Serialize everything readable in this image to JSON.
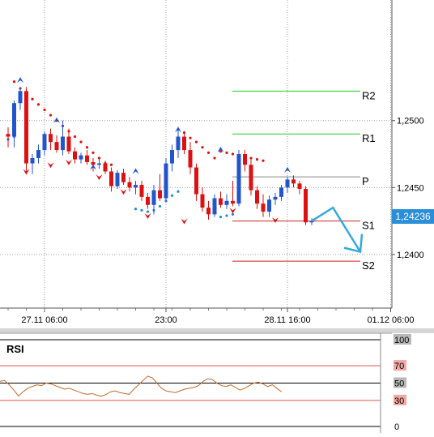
{
  "chart_data": [
    {
      "type": "candlestick",
      "price_axis": {
        "min": 1.236,
        "max": 1.259,
        "ticks": [
          "1,2500",
          "1,2450",
          "1,2400"
        ],
        "tick_values": [
          1.25,
          1.245,
          1.24
        ],
        "current_price_label": "1,24236",
        "current_price": 1.24236
      },
      "time_axis": {
        "labels": [
          "27.11 06:00",
          "23:00",
          "28.11 16:00",
          "01.12 06:00"
        ],
        "label_index": [
          6,
          26,
          46,
          63
        ]
      },
      "candles": [
        [
          1.249,
          1.2495,
          1.248,
          1.2488
        ],
        [
          1.2488,
          1.2515,
          1.248,
          1.2513
        ],
        [
          1.2513,
          1.2525,
          1.2508,
          1.2522
        ],
        [
          1.2522,
          1.2525,
          1.2462,
          1.2468
        ],
        [
          1.2468,
          1.2475,
          1.246,
          1.2472
        ],
        [
          1.2472,
          1.2482,
          1.2468,
          1.2478
        ],
        [
          1.2478,
          1.2492,
          1.2474,
          1.249
        ],
        [
          1.249,
          1.2494,
          1.2478,
          1.2484
        ],
        [
          1.2484,
          1.2489,
          1.2476,
          1.2478
        ],
        [
          1.2478,
          1.25,
          1.2474,
          1.2488
        ],
        [
          1.2488,
          1.2494,
          1.2475,
          1.2477
        ],
        [
          1.2477,
          1.248,
          1.2468,
          1.2471
        ],
        [
          1.2471,
          1.2476,
          1.2468,
          1.2474
        ],
        [
          1.2474,
          1.2478,
          1.2467,
          1.2469
        ],
        [
          1.2469,
          1.2472,
          1.2462,
          1.2467
        ],
        [
          1.2467,
          1.2471,
          1.2464,
          1.2468
        ],
        [
          1.2468,
          1.247,
          1.246,
          1.2462
        ],
        [
          1.2462,
          1.2465,
          1.2447,
          1.2451
        ],
        [
          1.2451,
          1.2463,
          1.2449,
          1.2461
        ],
        [
          1.2461,
          1.2464,
          1.2452,
          1.2454
        ],
        [
          1.2454,
          1.2458,
          1.2447,
          1.245
        ],
        [
          1.245,
          1.2455,
          1.2445,
          1.2452
        ],
        [
          1.2452,
          1.2455,
          1.244,
          1.2443
        ],
        [
          1.2443,
          1.2446,
          1.2434,
          1.2437
        ],
        [
          1.2437,
          1.2452,
          1.243,
          1.2448
        ],
        [
          1.2448,
          1.246,
          1.244,
          1.2442
        ],
        [
          1.2442,
          1.2472,
          1.244,
          1.2468
        ],
        [
          1.2468,
          1.2482,
          1.2462,
          1.2478
        ],
        [
          1.2478,
          1.2493,
          1.2472,
          1.2488
        ],
        [
          1.2488,
          1.2492,
          1.2475,
          1.2478
        ],
        [
          1.2478,
          1.2484,
          1.246,
          1.2465
        ],
        [
          1.2465,
          1.2468,
          1.244,
          1.2445
        ],
        [
          1.2445,
          1.245,
          1.2432,
          1.2435
        ],
        [
          1.2435,
          1.244,
          1.2426,
          1.243
        ],
        [
          1.243,
          1.2445,
          1.2428,
          1.2442
        ],
        [
          1.2442,
          1.2447,
          1.2435,
          1.2437
        ],
        [
          1.2437,
          1.2445,
          1.2434,
          1.244
        ],
        [
          1.244,
          1.2455,
          1.2436,
          1.2438
        ],
        [
          1.2438,
          1.2478,
          1.2436,
          1.2475
        ],
        [
          1.2475,
          1.2478,
          1.2462,
          1.2467
        ],
        [
          1.2467,
          1.2471,
          1.2444,
          1.2448
        ],
        [
          1.2448,
          1.2451,
          1.2434,
          1.2438
        ],
        [
          1.2438,
          1.2445,
          1.2428,
          1.2432
        ],
        [
          1.2432,
          1.2444,
          1.2428,
          1.2441
        ],
        [
          1.2441,
          1.2446,
          1.2437,
          1.2443
        ],
        [
          1.2443,
          1.2452,
          1.244,
          1.245
        ],
        [
          1.245,
          1.2458,
          1.2446,
          1.2456
        ],
        [
          1.2456,
          1.2459,
          1.245,
          1.2453
        ],
        [
          1.2453,
          1.2455,
          1.2445,
          1.2449
        ],
        [
          1.2449,
          1.2451,
          1.2422,
          1.2424
        ],
        [
          1.2424,
          1.2427,
          1.2422,
          1.2425
        ]
      ],
      "trailing_stop_upper": [
        [
          1,
          1.2529
        ],
        [
          2,
          1.2524
        ],
        [
          3,
          1.252
        ],
        [
          4,
          1.2516
        ],
        [
          5,
          1.2512
        ],
        [
          6,
          1.2508
        ],
        [
          7,
          1.2504
        ],
        [
          8,
          1.25
        ],
        [
          9,
          1.2496
        ],
        [
          10,
          1.2492
        ],
        [
          11,
          1.2488
        ],
        [
          12,
          1.2484
        ],
        [
          13,
          1.248
        ],
        [
          14,
          1.2476
        ],
        [
          15,
          1.2472
        ],
        [
          16,
          1.2468
        ],
        [
          17,
          1.2467
        ],
        [
          29,
          1.2491
        ],
        [
          30,
          1.2487
        ],
        [
          31,
          1.2484
        ],
        [
          32,
          1.248
        ],
        [
          33,
          1.2476
        ],
        [
          34,
          1.2472
        ],
        [
          35,
          1.2477
        ],
        [
          36,
          1.2476
        ],
        [
          37,
          1.2475
        ],
        [
          38,
          1.2474
        ],
        [
          39,
          1.2473
        ],
        [
          40,
          1.2472
        ],
        [
          41,
          1.2471
        ],
        [
          42,
          1.247
        ]
      ],
      "trailing_stop_lower": [
        [
          0,
          1.2486
        ],
        [
          1,
          1.2488
        ],
        [
          21,
          1.2434
        ],
        [
          22,
          1.2433
        ],
        [
          23,
          1.2432
        ],
        [
          24,
          1.2433
        ],
        [
          25,
          1.2436
        ],
        [
          26,
          1.244
        ],
        [
          27,
          1.2444
        ],
        [
          28,
          1.2447
        ],
        [
          35,
          1.2428
        ],
        [
          36,
          1.2429
        ],
        [
          37,
          1.243
        ]
      ],
      "fractals_up": [
        [
          2,
          1.253
        ],
        [
          8,
          1.25
        ],
        [
          14,
          1.2465
        ],
        [
          21,
          1.2462
        ],
        [
          28,
          1.2493
        ],
        [
          35,
          1.2478
        ],
        [
          46,
          1.2463
        ]
      ],
      "fractals_down": [
        [
          3,
          1.2462
        ],
        [
          7,
          1.2467
        ],
        [
          10,
          1.2469
        ],
        [
          15,
          1.2458
        ],
        [
          19,
          1.2447
        ],
        [
          23,
          1.2429
        ],
        [
          29,
          1.2425
        ],
        [
          37,
          1.2433
        ],
        [
          44,
          1.2426
        ]
      ],
      "pivot_levels": [
        {
          "label": "R2",
          "value": 1.2522,
          "color": "#22cc22"
        },
        {
          "label": "R1",
          "value": 1.249,
          "color": "#22cc22"
        },
        {
          "label": "P",
          "value": 1.2458,
          "color": "#888888"
        },
        {
          "label": "S1",
          "value": 1.2425,
          "color": "#cc2222"
        },
        {
          "label": "S2",
          "value": 1.2395,
          "color": "#cc2222"
        }
      ],
      "forecast_arrow": {
        "color": "#33aadd",
        "points": [
          [
            50,
            1.2425
          ],
          [
            53.5,
            1.2435
          ],
          [
            58,
            1.2402
          ]
        ]
      },
      "colors": {
        "bull": "#2255cc",
        "bear": "#dd1111",
        "trailing": "#dd1111",
        "trailing_lower": "#2288dd",
        "fractal_up": "#2255cc",
        "fractal_down": "#dd1111",
        "grid": "#9a9a9a",
        "price_tag": "#2a8fd8"
      }
    },
    {
      "type": "line",
      "title": "RSI",
      "y_axis": {
        "min": 0,
        "max": 100,
        "ticks": [
          "100",
          "70",
          "50",
          "30",
          "0"
        ],
        "tick_values": [
          100,
          70,
          50,
          30,
          0
        ]
      },
      "levels": [
        70,
        50,
        30
      ],
      "values": [
        52,
        53,
        48,
        42,
        35,
        40,
        44,
        46,
        48,
        47,
        50,
        49,
        47,
        45,
        43,
        44,
        42,
        40,
        38,
        37,
        38,
        36,
        35,
        37,
        40,
        41,
        39,
        38,
        37,
        43,
        48,
        53,
        58,
        56,
        50,
        44,
        41,
        40,
        39,
        41,
        43,
        44,
        45,
        47,
        52,
        55,
        54,
        50,
        47,
        46,
        48,
        45,
        42,
        44,
        47,
        50,
        51,
        49,
        46,
        48,
        44,
        40
      ],
      "colors": {
        "line": "#c06a2a",
        "level_70": "#e8504a",
        "level_30": "#e8504a",
        "level_50": "#000000",
        "tag_red": "#f0a8a4",
        "tag_gray": "#b8b8b8"
      }
    }
  ]
}
